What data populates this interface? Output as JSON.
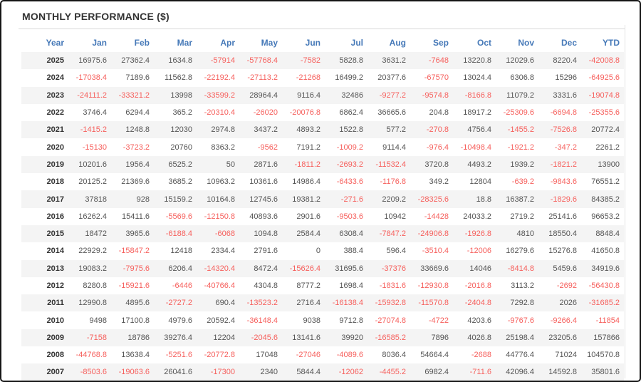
{
  "title": "MONTHLY PERFORMANCE ($)",
  "colors": {
    "column_header_text": "#4679b8",
    "negative_value": "#f6605d",
    "positive_value": "#555555",
    "year_text": "#333333",
    "title_text": "#333333",
    "row_stripe": "#f4f4f4",
    "divider": "#d8d8d8",
    "frame_border": "#161616"
  },
  "table": {
    "columns": [
      "Year",
      "Jan",
      "Feb",
      "Mar",
      "Apr",
      "May",
      "Jun",
      "Jul",
      "Aug",
      "Sep",
      "Oct",
      "Nov",
      "Dec",
      "YTD"
    ],
    "rows": [
      {
        "year": "2025",
        "values": [
          16975.6,
          27362.4,
          1634.8,
          -57914,
          -57768.4,
          -7582,
          5828.8,
          3631.2,
          -7648,
          13220.8,
          12029.6,
          8220.4,
          -42008.8
        ]
      },
      {
        "year": "2024",
        "values": [
          -17038.4,
          7189.6,
          11562.8,
          -22192.4,
          -27113.2,
          -21268,
          16499.2,
          20377.6,
          -67570,
          13024.4,
          6306.8,
          15296,
          -64925.6
        ]
      },
      {
        "year": "2023",
        "values": [
          -24111.2,
          -33321.2,
          13998,
          -33599.2,
          28964.4,
          9116.4,
          32486,
          -9277.2,
          -9574.8,
          -8166.8,
          11079.2,
          3331.6,
          -19074.8
        ]
      },
      {
        "year": "2022",
        "values": [
          3746.4,
          6294.4,
          365.2,
          -20310.4,
          -26020,
          -20076.8,
          6862.4,
          36665.6,
          204.8,
          18917.2,
          -25309.6,
          -6694.8,
          -25355.6
        ]
      },
      {
        "year": "2021",
        "values": [
          -1415.2,
          1248.8,
          12030,
          2974.8,
          3437.2,
          4893.2,
          1522.8,
          577.2,
          -270.8,
          4756.4,
          -1455.2,
          -7526.8,
          20772.4
        ]
      },
      {
        "year": "2020",
        "values": [
          -15130,
          -3723.2,
          20760,
          8363.2,
          -9562,
          7191.2,
          -1009.2,
          9114.4,
          -976.4,
          -10498.4,
          -1921.2,
          -347.2,
          2261.2
        ]
      },
      {
        "year": "2019",
        "values": [
          10201.6,
          1956.4,
          6525.2,
          50,
          2871.6,
          -1811.2,
          -2693.2,
          -11532.4,
          3720.8,
          4493.2,
          1939.2,
          -1821.2,
          13900
        ]
      },
      {
        "year": "2018",
        "values": [
          20125.2,
          21369.6,
          3685.2,
          10963.2,
          10361.6,
          14986.4,
          -6433.6,
          -1176.8,
          349.2,
          12804,
          -639.2,
          -9843.6,
          76551.2
        ]
      },
      {
        "year": "2017",
        "values": [
          37818,
          928,
          15159.2,
          10164.8,
          12745.6,
          19381.2,
          -271.6,
          2209.2,
          -28325.6,
          18.8,
          16387.2,
          -1829.6,
          84385.2
        ]
      },
      {
        "year": "2016",
        "values": [
          16262.4,
          15411.6,
          -5569.6,
          -12150.8,
          40893.6,
          2901.6,
          -9503.6,
          10942,
          -14428,
          24033.2,
          2719.2,
          25141.6,
          96653.2
        ]
      },
      {
        "year": "2015",
        "values": [
          18472,
          3965.6,
          -6188.4,
          -6068,
          1094.8,
          2584.4,
          6308.4,
          -7847.2,
          -24906.8,
          -1926.8,
          4810,
          18550.4,
          8848.4
        ]
      },
      {
        "year": "2014",
        "values": [
          22929.2,
          -15847.2,
          12418,
          2334.4,
          2791.6,
          0,
          388.4,
          596.4,
          -3510.4,
          -12006,
          16279.6,
          15276.8,
          41650.8
        ]
      },
      {
        "year": "2013",
        "values": [
          19083.2,
          -7975.6,
          6206.4,
          -14320.4,
          8472.4,
          -15626.4,
          31695.6,
          -37376,
          33669.6,
          14046,
          -8414.8,
          5459.6,
          34919.6
        ]
      },
      {
        "year": "2012",
        "values": [
          8280.8,
          -15921.6,
          -6446,
          -40766.4,
          4304.8,
          8777.2,
          1698.4,
          -1831.6,
          -12930.8,
          -2016.8,
          3113.2,
          -2692,
          -56430.8
        ]
      },
      {
        "year": "2011",
        "values": [
          12990.8,
          4895.6,
          -2727.2,
          690.4,
          -13523.2,
          2716.4,
          -16138.4,
          -15932.8,
          -11570.8,
          -2404.8,
          7292.8,
          2026,
          -31685.2
        ]
      },
      {
        "year": "2010",
        "values": [
          9498,
          17100.8,
          4979.6,
          20592.4,
          -36148.4,
          9038,
          9712.8,
          -27074.8,
          -4722,
          4203.6,
          -9767.6,
          -9266.4,
          -11854
        ]
      },
      {
        "year": "2009",
        "values": [
          -7158,
          18786,
          39276.4,
          12204,
          -2045.6,
          13141.6,
          39920,
          -16585.2,
          7896,
          4026.8,
          25198.4,
          23205.6,
          157866
        ]
      },
      {
        "year": "2008",
        "values": [
          -44768.8,
          13638.4,
          -5251.6,
          -20772.8,
          17048,
          -27046,
          -4089.6,
          8036.4,
          54664.4,
          -2688,
          44776.4,
          71024,
          104570.8
        ]
      },
      {
        "year": "2007",
        "values": [
          -8503.6,
          -19063.6,
          26041.6,
          -17300,
          2340,
          5844.4,
          -12062,
          -4455.2,
          6982.4,
          -711.6,
          42096.4,
          14592.8,
          35801.6
        ]
      }
    ]
  }
}
